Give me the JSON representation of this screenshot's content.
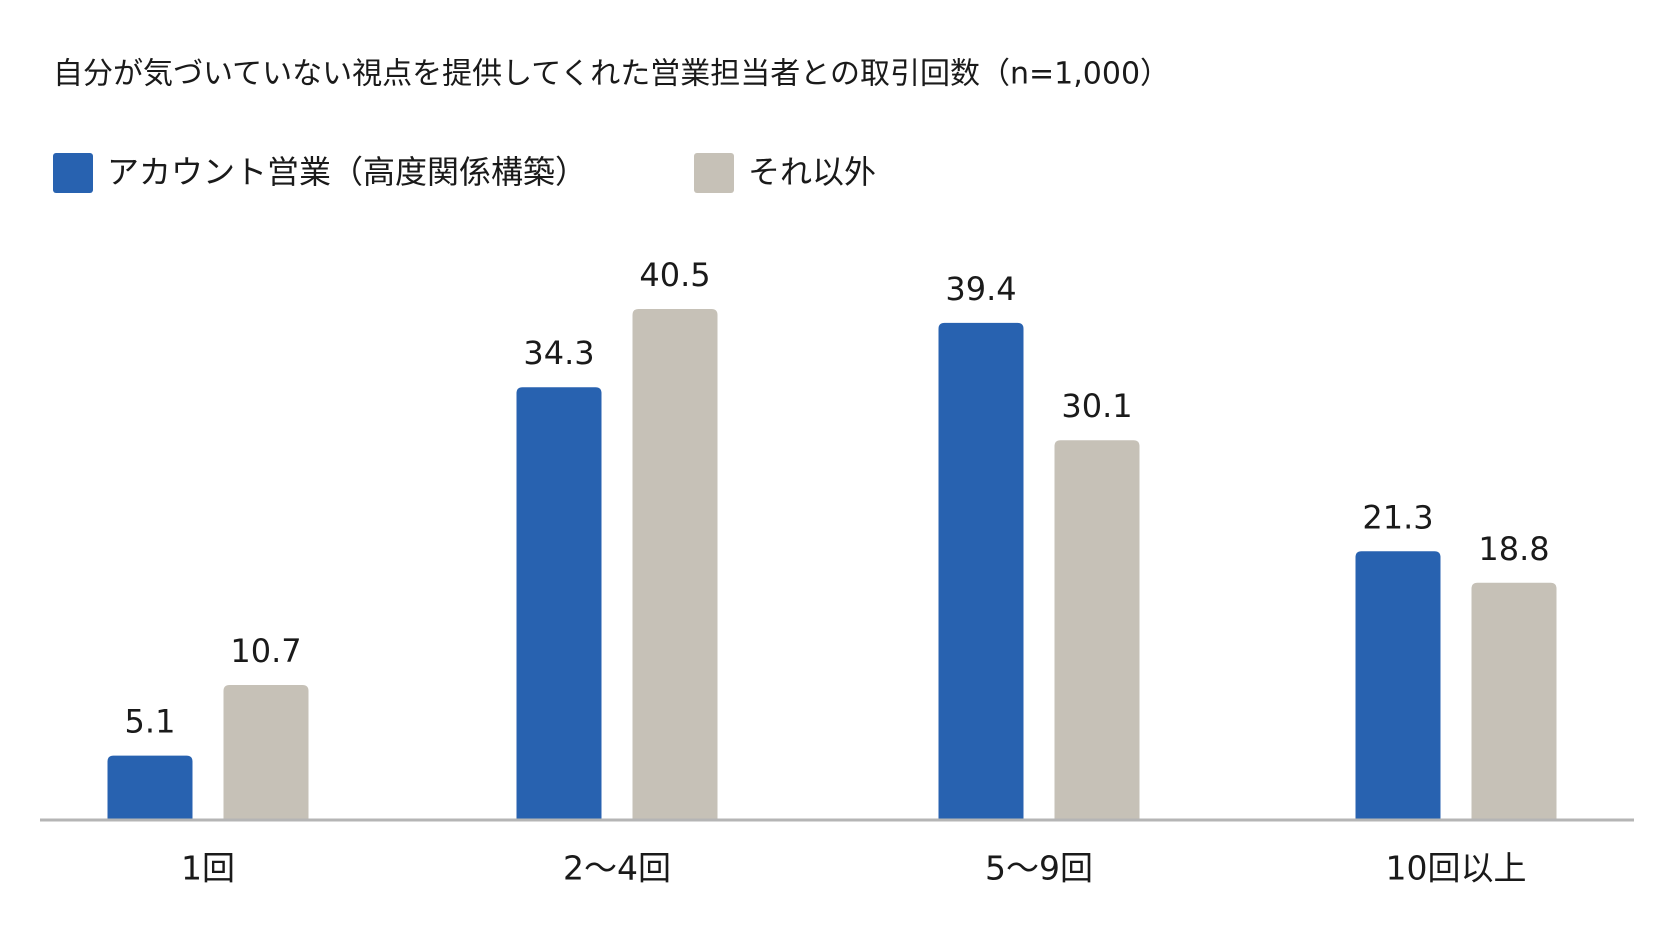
{
  "chart_data": {
    "type": "bar",
    "title": "自分が気づいていない視点を提供してくれた営業担当者との取引回数（n=1,000）",
    "categories": [
      "1回",
      "2〜4回",
      "5〜9回",
      "10回以上"
    ],
    "series": [
      {
        "name": "アカウント営業（高度関係構築）",
        "color": "#2862b0",
        "values": [
          5.1,
          34.3,
          39.4,
          21.3
        ]
      },
      {
        "name": "それ以外",
        "color": "#c6c1b7",
        "values": [
          10.7,
          40.5,
          30.1,
          18.8
        ]
      }
    ]
  }
}
